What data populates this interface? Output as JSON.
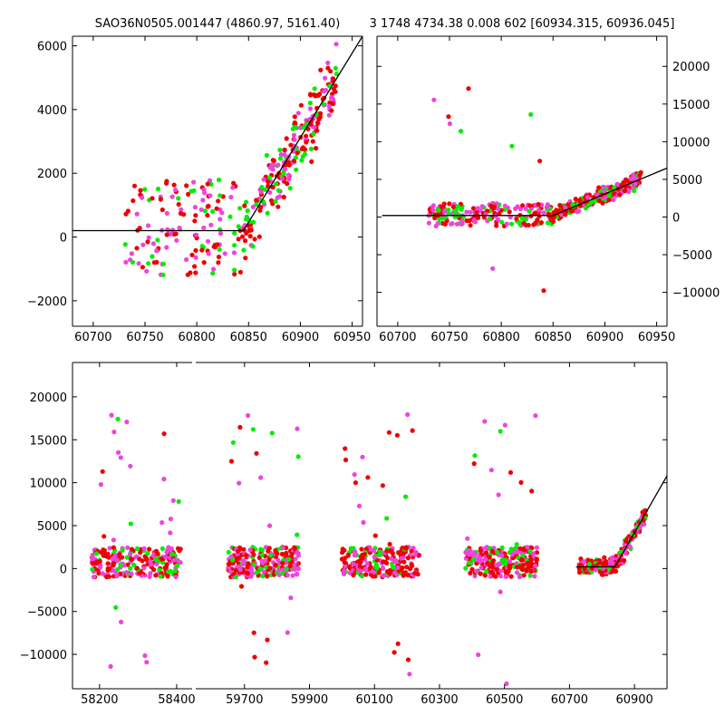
{
  "title_left": "SAO36N0505.001447 (4860.97, 5161.40)",
  "title_right": "3 1748 4734.38 0.008 602 [60934.315, 60936.045]",
  "colors": {
    "green": "#00ee00",
    "red": "#ee0000",
    "magenta": "#ee44dd",
    "fit": "#000000"
  },
  "chart_data": [
    {
      "id": "top-left",
      "type": "scatter",
      "xlim": [
        60680,
        60960
      ],
      "ylim": [
        -2800,
        6300
      ],
      "xticks": [
        60700,
        60750,
        60800,
        60850,
        60900,
        60950
      ],
      "yticks": [
        -2000,
        0,
        2000,
        4000,
        6000
      ],
      "ytick_side": "left",
      "fit_line": [
        [
          60680,
          200
        ],
        [
          60845,
          200
        ],
        [
          60960,
          6300
        ]
      ],
      "point_clouds": [
        {
          "x": [
            60730,
            60845
          ],
          "y": [
            -1200,
            1800
          ],
          "n": 160
        },
        {
          "x": [
            60845,
            60935
          ],
          "y": [
            0,
            5500
          ],
          "n": 230,
          "trend": true
        }
      ]
    },
    {
      "id": "top-right",
      "type": "scatter",
      "xlim": [
        60680,
        60960
      ],
      "ylim": [
        -14500,
        24000
      ],
      "xticks": [
        60700,
        60750,
        60800,
        60850,
        60900,
        60950
      ],
      "yticks": [
        -10000,
        -5000,
        0,
        5000,
        10000,
        15000,
        20000
      ],
      "ytick_side": "right",
      "fit_line": [
        [
          60685,
          200
        ],
        [
          60850,
          200
        ],
        [
          60960,
          6500
        ]
      ],
      "point_clouds": [
        {
          "x": [
            60730,
            60850
          ],
          "y": [
            -1200,
            1800
          ],
          "n": 200
        },
        {
          "x": [
            60850,
            60935
          ],
          "y": [
            0,
            6000
          ],
          "n": 260,
          "trend": true
        }
      ]
    },
    {
      "id": "bottom",
      "type": "scatter",
      "ylim": [
        -14000,
        24000
      ],
      "yticks": [
        -10000,
        -5000,
        0,
        5000,
        10000,
        15000,
        20000
      ],
      "ytick_side": "left",
      "segments": [
        {
          "xlim": [
            58130,
            58440
          ],
          "xticks": [
            58200,
            58400
          ]
        },
        {
          "xlim": [
            59550,
            61000
          ],
          "xticks": [
            59700,
            59900,
            60100,
            60300,
            60500,
            60700,
            60900
          ]
        }
      ],
      "fit_line": [
        [
          60720,
          200
        ],
        [
          60840,
          200
        ],
        [
          61000,
          10800
        ]
      ],
      "point_clouds": [
        {
          "seg": 0,
          "x": [
            58180,
            58410
          ],
          "y": [
            -1000,
            2500
          ],
          "n": 240
        },
        {
          "seg": 1,
          "x": [
            59650,
            59870
          ],
          "y": [
            -1000,
            2500
          ],
          "n": 240
        },
        {
          "seg": 1,
          "x": [
            60000,
            60240
          ],
          "y": [
            -1000,
            2500
          ],
          "n": 240
        },
        {
          "seg": 1,
          "x": [
            60380,
            60600
          ],
          "y": [
            -1000,
            2500
          ],
          "n": 240
        },
        {
          "seg": 1,
          "x": [
            60730,
            60935
          ],
          "y": [
            -1000,
            5500
          ],
          "n": 260,
          "trend": true
        }
      ]
    }
  ]
}
